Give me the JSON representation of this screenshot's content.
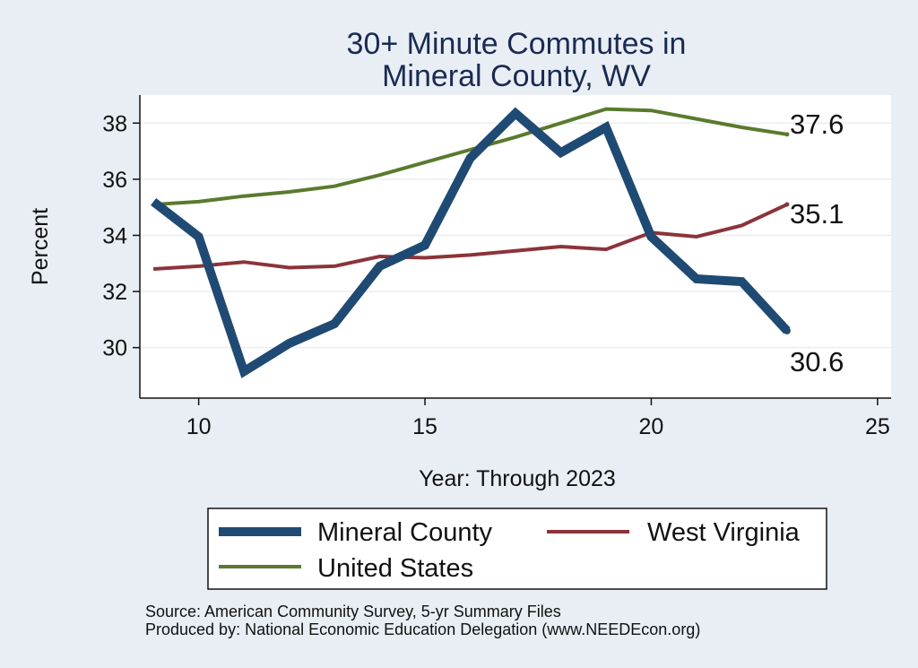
{
  "chart_data": {
    "type": "line",
    "title": [
      "30+ Minute Commutes in",
      "Mineral County, WV"
    ],
    "xlabel": "Year: Through 2023",
    "ylabel": "Percent",
    "xlim": [
      8.7,
      25.3
    ],
    "ylim": [
      28.2,
      39.0
    ],
    "xticks": [
      10,
      15,
      20,
      25
    ],
    "yticks": [
      30,
      32,
      34,
      36,
      38
    ],
    "grid": true,
    "legend_position": "bottom",
    "series": [
      {
        "name": "Mineral County",
        "color": "#1f4a73",
        "x": [
          9,
          10,
          11,
          12,
          13,
          14,
          15,
          16,
          17,
          18,
          19,
          20,
          21,
          22,
          23
        ],
        "values": [
          35.2,
          33.95,
          29.15,
          30.15,
          30.85,
          32.9,
          33.65,
          36.75,
          38.35,
          36.95,
          37.85,
          33.95,
          32.45,
          32.35,
          30.6
        ],
        "end_label": "30.6"
      },
      {
        "name": "West Virginia",
        "color": "#8b343a",
        "x": [
          9,
          10,
          11,
          12,
          13,
          14,
          15,
          16,
          17,
          18,
          19,
          20,
          21,
          22,
          23
        ],
        "values": [
          32.8,
          32.9,
          33.05,
          32.85,
          32.9,
          33.25,
          33.2,
          33.3,
          33.45,
          33.6,
          33.5,
          34.1,
          33.95,
          34.35,
          35.1
        ],
        "end_label": "35.1"
      },
      {
        "name": "United States",
        "color": "#5a7a2e",
        "x": [
          9,
          10,
          11,
          12,
          13,
          14,
          15,
          16,
          17,
          18,
          19,
          20,
          21,
          22,
          23
        ],
        "values": [
          35.1,
          35.2,
          35.4,
          35.55,
          35.75,
          36.15,
          36.6,
          37.05,
          37.5,
          38.0,
          38.5,
          38.45,
          38.15,
          37.85,
          37.6
        ],
        "end_label": "37.6"
      }
    ]
  },
  "source_note": "Source: American Community Survey, 5-yr Summary Files",
  "produced_note": "Produced by: National Economic Education Delegation (www.NEEDEcon.org)"
}
